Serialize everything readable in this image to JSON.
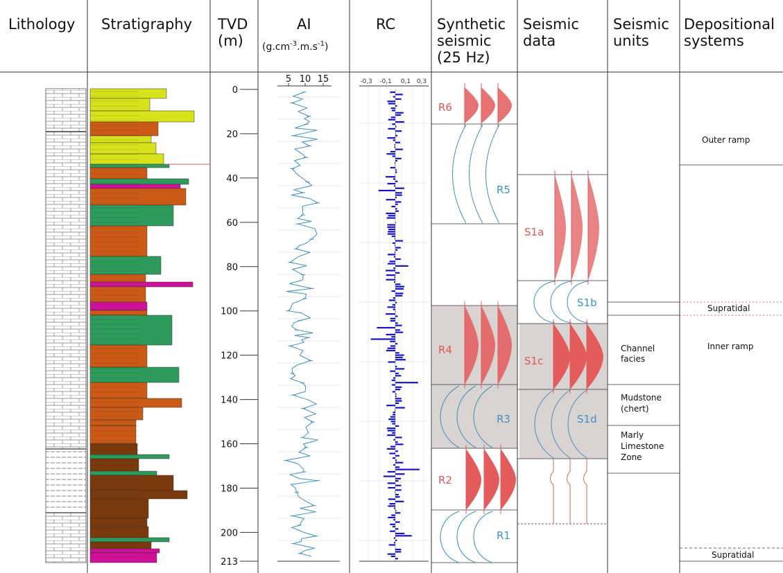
{
  "headers": {
    "lithology": "Lithology",
    "stratigraphy": "Stratigraphy",
    "tvd": [
      "TVD",
      "(m)"
    ],
    "ai": [
      "AI",
      "(g.cm",
      "-3",
      ".m.s",
      "-1",
      ")"
    ],
    "rc": "RC",
    "synthetic": [
      "Synthetic",
      "seismic",
      "(25 Hz)"
    ],
    "seismic_data": [
      "Seismic",
      "data"
    ],
    "seismic_units": [
      "Seismic",
      "units"
    ],
    "depositional": [
      "Depositional",
      "systems"
    ]
  },
  "depth_ticks": [
    "0",
    "20",
    "40",
    "60",
    "80",
    "100",
    "120",
    "140",
    "160",
    "180",
    "200",
    "213"
  ],
  "ai_ticks": [
    "5",
    "10",
    "15"
  ],
  "rc_ticks": [
    "-0,3",
    "-0,1",
    "0,1",
    "0,3"
  ],
  "synthetic_labels": {
    "r6": "R6",
    "r5": "R5",
    "r4": "R4",
    "r3": "R3",
    "r2": "R2",
    "r1": "R1"
  },
  "seismic_labels": {
    "s1a": "S1a",
    "s1b": "S1b",
    "s1c": "S1c",
    "s1d": "S1d"
  },
  "seismic_units": {
    "channel": [
      "Channel",
      "facies"
    ],
    "mudstone": [
      "Mudstone",
      "(chert)"
    ],
    "marly": [
      "Marly",
      "Limestone",
      "Zone"
    ]
  },
  "depositional": {
    "outer_ramp": "Outer ramp",
    "supratidal_1": "Supratidal",
    "inner_ramp": "Inner ramp",
    "supratidal_2": "Supratidal"
  },
  "colors": {
    "yellow": "#d6e21a",
    "orange": "#cc5a17",
    "brown": "#7a3a0e",
    "green": "#2e9a5c",
    "magenta": "#d1109a",
    "blue_log": "#3a8fc2",
    "rc_bar": "#1414c8",
    "red_fill": "#e35b5b",
    "grey": "#d9d3d1"
  }
}
